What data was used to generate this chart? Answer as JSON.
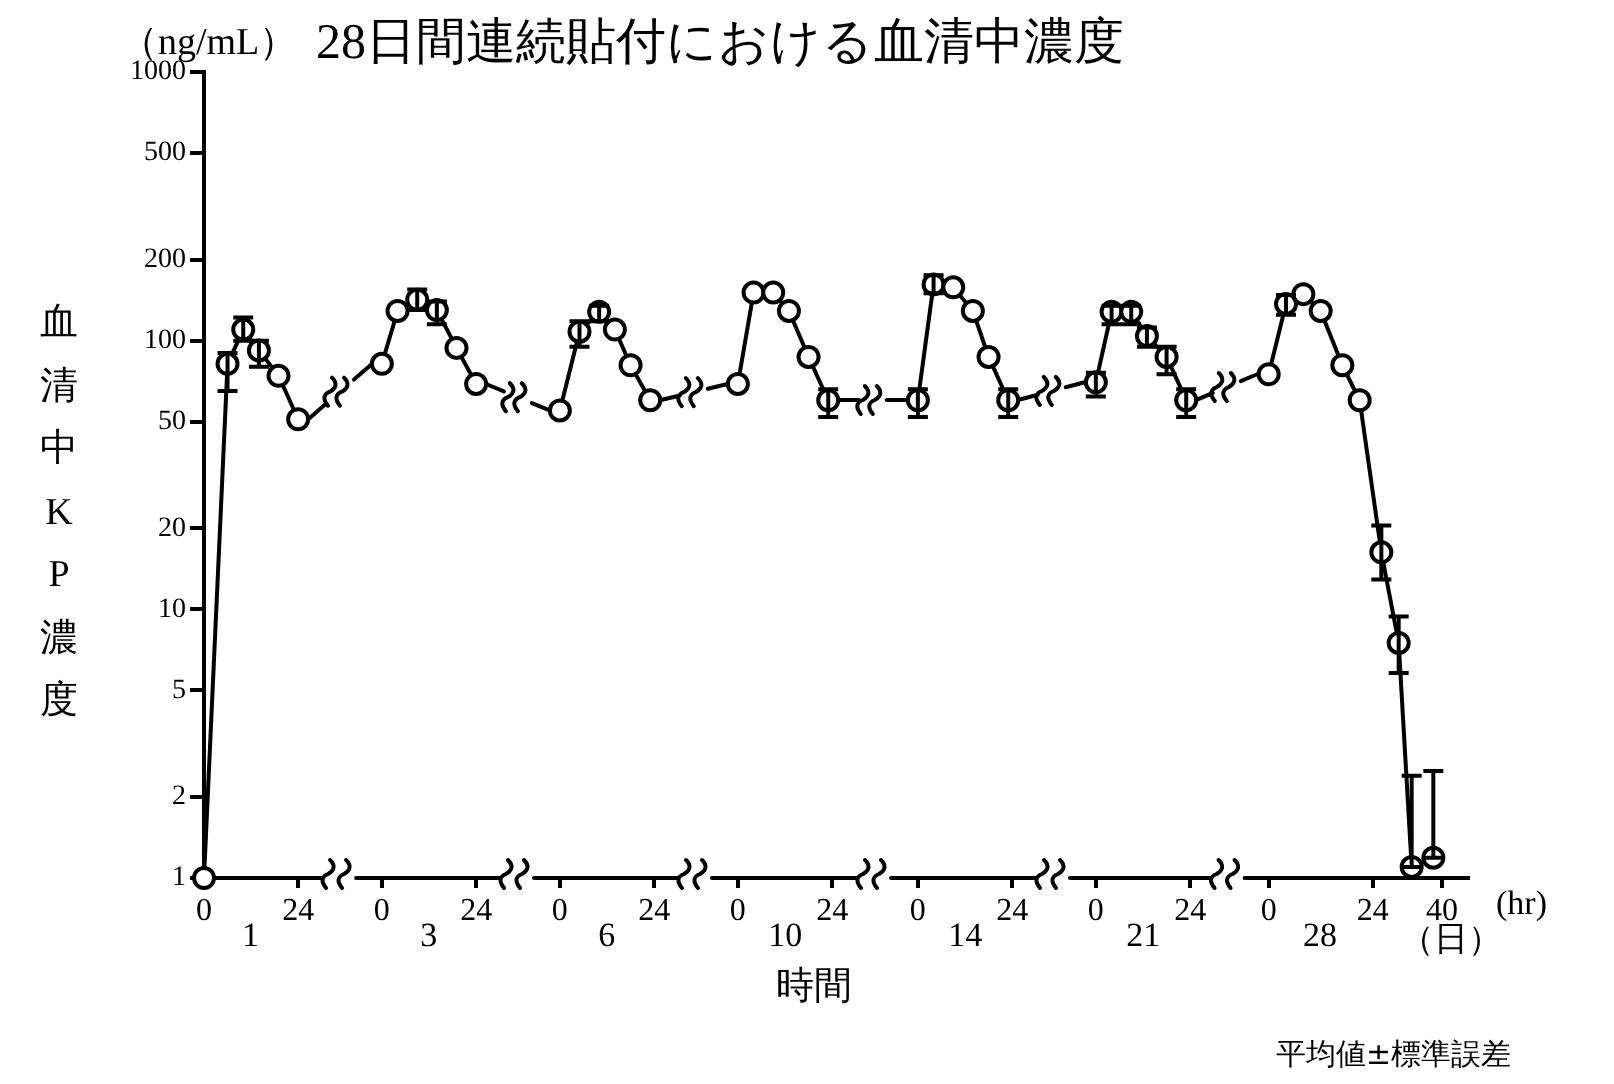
{
  "chart_data": [
    {
      "type": "line",
      "title": "28日間連続貼付における血清中濃度",
      "ylabel": "血清中KP濃度",
      "xlabel": "1",
      "annotations": [
        "（ng/mL）",
        "時間",
        "平均値±標準誤差"
      ],
      "x": [
        0,
        6,
        10,
        14,
        19,
        24
      ],
      "values": [
        1,
        82,
        110,
        92,
        74,
        51
      ],
      "errors": [
        null,
        [
          65,
          90
        ],
        [
          100,
          122
        ],
        [
          80,
          100
        ],
        null,
        null
      ],
      "color": "#000000",
      "marker": "circle",
      "line_style": "solid",
      "log": "y",
      "xlim": [
        0,
        26
      ],
      "xticks": [
        0,
        24
      ],
      "ylim": [
        1,
        1000
      ],
      "yticks": [
        1,
        2,
        5,
        10,
        20,
        50,
        100,
        200,
        500,
        1000
      ]
    },
    {
      "type": "line",
      "xlabel": "3",
      "x": [
        0,
        4,
        9,
        14,
        19,
        24
      ],
      "values": [
        82,
        129,
        142,
        130,
        94,
        69
      ],
      "errors": [
        null,
        null,
        [
          130,
          155
        ],
        [
          115,
          140
        ],
        null,
        null
      ],
      "color": "#000000",
      "marker": "circle",
      "line_style": "solid",
      "log": "y",
      "xlim": [
        -2,
        26
      ],
      "xticks": [
        0,
        24
      ],
      "ylim": [
        1,
        1000
      ],
      "yticks": [
        1,
        2,
        5,
        10,
        20,
        50,
        100,
        200,
        500,
        1000
      ],
      "tick_labels": "x"
    },
    {
      "type": "line",
      "xlabel": "6",
      "x": [
        0,
        5,
        10,
        14,
        18,
        23
      ],
      "values": [
        55,
        108,
        128,
        110,
        81,
        60
      ],
      "errors": [
        null,
        [
          95,
          118
        ],
        [
          118,
          135
        ],
        null,
        null,
        null
      ],
      "color": "#000000",
      "marker": "circle",
      "line_style": "solid",
      "log": "y",
      "xlim": [
        -2,
        26
      ],
      "xticks": [
        0,
        24
      ],
      "ylim": [
        1,
        1000
      ],
      "yticks": [
        1,
        2,
        5,
        10,
        20,
        50,
        100,
        200,
        500,
        1000
      ],
      "tick_labels": "x"
    },
    {
      "type": "line",
      "xlabel": "10",
      "x": [
        0,
        4,
        9,
        13,
        18,
        23
      ],
      "values": [
        69,
        151,
        151,
        129,
        87,
        60
      ],
      "errors": [
        null,
        null,
        null,
        null,
        null,
        [
          52,
          66
        ]
      ],
      "color": "#000000",
      "marker": "circle",
      "line_style": "solid",
      "log": "y",
      "xlim": [
        -2,
        26
      ],
      "xticks": [
        0,
        24
      ],
      "ylim": [
        1,
        1000
      ],
      "yticks": [
        1,
        2,
        5,
        10,
        20,
        50,
        100,
        200,
        500,
        1000
      ],
      "tick_labels": "x"
    },
    {
      "type": "line",
      "xlabel": "14",
      "x": [
        0,
        4,
        9,
        14,
        18,
        23
      ],
      "values": [
        60,
        162,
        158,
        129,
        87,
        60
      ],
      "errors": [
        [
          52,
          66
        ],
        [
          150,
          175
        ],
        null,
        null,
        null,
        [
          52,
          66
        ]
      ],
      "color": "#000000",
      "marker": "circle",
      "line_style": "solid",
      "log": "y",
      "xlim": [
        -2,
        26
      ],
      "xticks": [
        0,
        24
      ],
      "ylim": [
        1,
        1000
      ],
      "yticks": [
        1,
        2,
        5,
        10,
        20,
        50,
        100,
        200,
        500,
        1000
      ],
      "tick_labels": "x"
    },
    {
      "type": "line",
      "xlabel": "21",
      "x": [
        0,
        4,
        9,
        13,
        18,
        23
      ],
      "values": [
        70,
        128,
        128,
        104,
        87,
        60
      ],
      "errors": [
        [
          62,
          76
        ],
        [
          115,
          135
        ],
        [
          115,
          135
        ],
        [
          95,
          112
        ],
        [
          75,
          95
        ],
        [
          52,
          66
        ]
      ],
      "color": "#000000",
      "marker": "circle",
      "line_style": "solid",
      "log": "y",
      "xlim": [
        -2,
        26
      ],
      "xticks": [
        0,
        24
      ],
      "ylim": [
        1,
        1000
      ],
      "yticks": [
        1,
        2,
        5,
        10,
        20,
        50,
        100,
        200,
        500,
        1000
      ],
      "tick_labels": "x"
    },
    {
      "type": "line",
      "xlabel": "28",
      "annotations": [
        "(hr)",
        "（日）"
      ],
      "x": [
        0,
        4,
        8,
        12,
        17,
        21,
        26,
        30,
        33,
        38
      ],
      "values": [
        75,
        137,
        149,
        129,
        81,
        60,
        16.3,
        7.5,
        1.1,
        1.19
      ],
      "errors": [
        null,
        [
          125,
          148
        ],
        null,
        null,
        null,
        null,
        [
          12.9,
          20.5
        ],
        [
          5.8,
          9.4
        ],
        [
          1.1,
          2.4
        ],
        [
          1.19,
          2.5
        ]
      ],
      "color": "#000000",
      "marker": "circle",
      "line_style": "solid",
      "log": "y",
      "xlim": [
        -2,
        46
      ],
      "xticks": [
        0,
        24,
        40
      ],
      "ylim": [
        1,
        1000
      ],
      "yticks": [
        1,
        2,
        5,
        10,
        20,
        50,
        100,
        200,
        500,
        1000
      ],
      "tick_labels": "x"
    }
  ]
}
